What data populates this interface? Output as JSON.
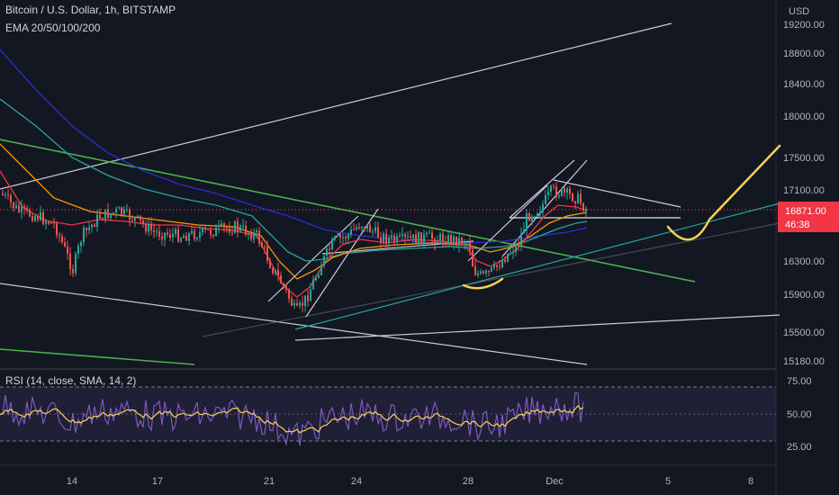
{
  "header": {
    "title": "Bitcoin / U.S. Dollar, 1h, BITSTAMP",
    "indicator": "EMA 20/50/100/200",
    "rsi_label": "RSI (14, close, SMA, 14, 2)"
  },
  "price_axis": {
    "currency": "USD",
    "ticks": [
      "19200.00",
      "18800.00",
      "18400.00",
      "18000.00",
      "17500.00",
      "17100.00",
      "16300.00",
      "15900.00",
      "15500.00",
      "15180.00"
    ],
    "last_price": "16871.00",
    "countdown": "46:38"
  },
  "rsi_axis": {
    "ticks": [
      "75.00",
      "50.00",
      "25.00"
    ]
  },
  "time_axis": {
    "ticks": [
      "14",
      "17",
      "21",
      "24",
      "28",
      "Dec",
      "5",
      "8"
    ]
  },
  "colors": {
    "background": "#131722",
    "price_label": "#f23645",
    "rsi_line": "#7e57c2",
    "rsi_signal": "#f7d154",
    "projection": "#f7d154",
    "ema20": "#f23645",
    "ema50": "#ff9800",
    "ema100": "#26a69a",
    "ema200": "#2a2ed4",
    "up_candle": "#26a69a",
    "down_candle": "#ef5350"
  }
}
